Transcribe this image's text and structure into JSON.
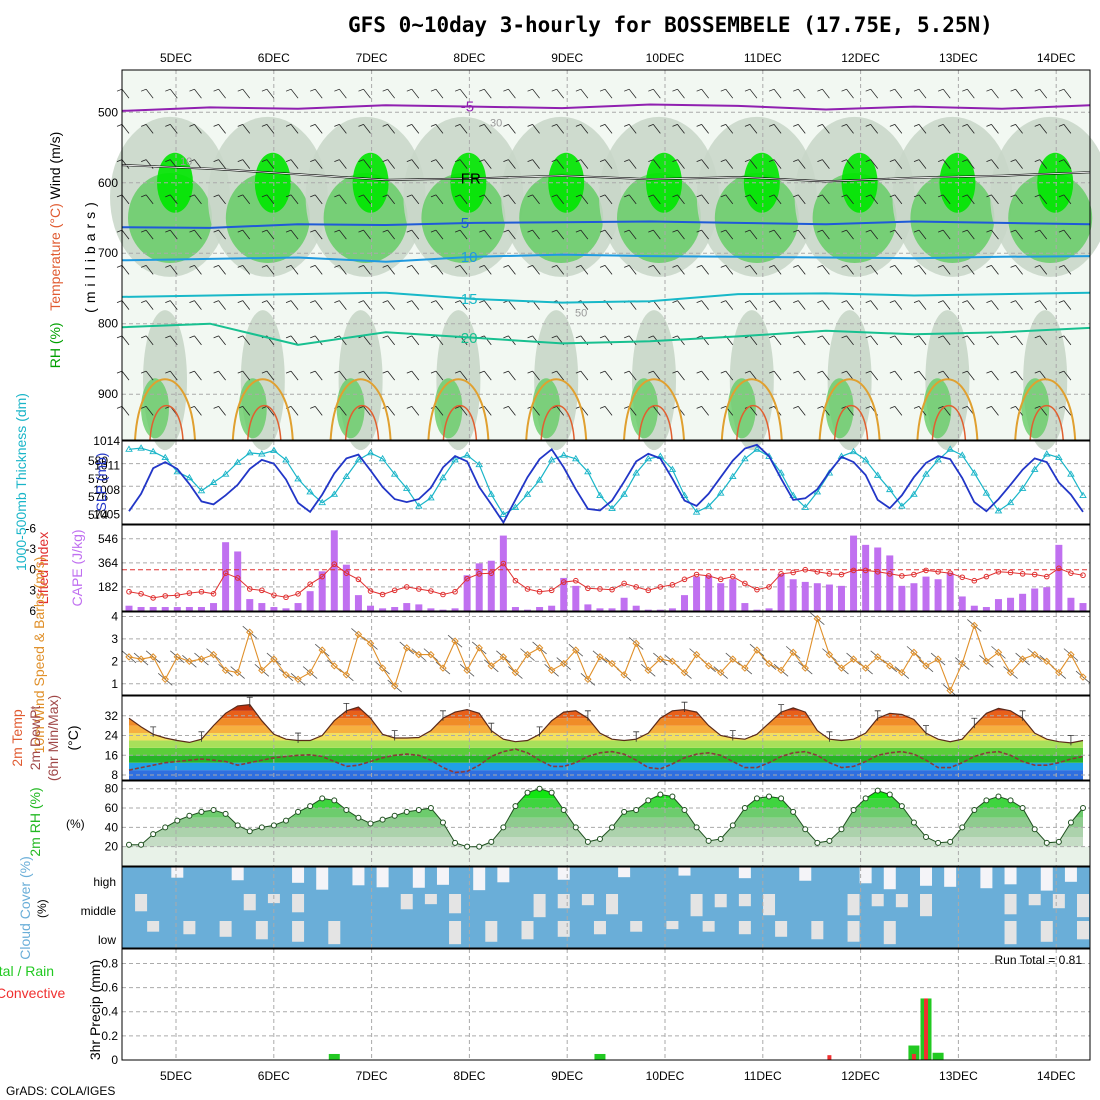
{
  "title": "GFS 0~10day 3-hourly for BOSSEMBELE (17.75E, 5.25N)",
  "credit": "GrADS: COLA/IGES",
  "run_total_text": "Run Total = 0.81",
  "colors": {
    "rh_dark": "#00e600",
    "rh_mid": "#66cc66",
    "rh_light": "#c8d6c8",
    "slp": "#2236c7",
    "thickness": "#19b5c8",
    "cape": "#c070f0",
    "lifted": "#e03030",
    "wind10": "#e0902a",
    "cloud": "#6aaed8",
    "precip_total": "#22c922",
    "precip_conv": "#f03030"
  },
  "chart_data": [
    {
      "type": "heatmap",
      "name": "upper-air",
      "ylabel_parts": [
        "RH (%)",
        "Temperature (°C)",
        "Wind (m/s)"
      ],
      "ylabel_axis": "(millibars)",
      "yticks": [
        500,
        600,
        700,
        800,
        900
      ],
      "ylim": [
        440,
        965
      ],
      "x_day_labels": [
        "5DEC",
        "6DEC",
        "7DEC",
        "8DEC",
        "9DEC",
        "10DEC",
        "11DEC",
        "12DEC",
        "13DEC",
        "14DEC"
      ],
      "temperature_isotherms": [
        {
          "value": -5,
          "label": "-5",
          "pressure": [
            498,
            493,
            495,
            490,
            492,
            494,
            489,
            491,
            496,
            492,
            495,
            490
          ]
        },
        {
          "value": 0,
          "label": "FR",
          "pressure": [
            575,
            580,
            588,
            596,
            594,
            590,
            595,
            592,
            598,
            593,
            590,
            585
          ]
        },
        {
          "value": 5,
          "label": "5",
          "pressure": [
            663,
            664,
            659,
            660,
            657,
            656,
            655,
            657,
            659,
            655,
            657,
            659
          ]
        },
        {
          "value": 10,
          "label": "10",
          "pressure": [
            710,
            708,
            706,
            712,
            705,
            702,
            704,
            705,
            706,
            707,
            705,
            704
          ]
        },
        {
          "value": 15,
          "label": "15",
          "pressure": [
            762,
            760,
            758,
            756,
            765,
            770,
            768,
            758,
            757,
            760,
            758,
            756
          ]
        },
        {
          "value": 20,
          "label": "20",
          "pressure": [
            805,
            800,
            830,
            812,
            820,
            828,
            825,
            818,
            810,
            815,
            812,
            806
          ]
        }
      ],
      "rh_labels": [
        "10",
        "30",
        "50"
      ]
    },
    {
      "type": "line",
      "name": "thickness-slp",
      "ylabel": "1000-500mb Thickness (dm)",
      "ylabel2": "SLP (mb)",
      "left_ticks": [
        "580",
        "578",
        "576",
        "574"
      ],
      "right_ticks": [
        "1014",
        "1011",
        "1008",
        "1005"
      ],
      "series": [
        {
          "name": "SLP (mb)",
          "values": [
            1004.7,
            1007.0,
            1010.4,
            1011.2,
            1010.3,
            1008.3,
            1006.0,
            1005.6,
            1006.8,
            1008.2,
            1010.3,
            1011.5,
            1011.0,
            1008.9,
            1005.8,
            1004.6,
            1006.9,
            1009.7,
            1011.7,
            1012.2,
            1010.1,
            1007.9,
            1006.3,
            1005.9,
            1006.3,
            1007.8,
            1010.5,
            1012.0,
            1011.3,
            1007.9,
            1005.6,
            1003.2,
            1006.2,
            1009.2,
            1011.6,
            1012.9,
            1010.5,
            1007.6,
            1005.0,
            1004.8,
            1006.1,
            1008.6,
            1011.3,
            1012.3,
            1011.7,
            1009.0,
            1006.1,
            1005.4,
            1007.0,
            1009.2,
            1011.4,
            1013.0,
            1013.5,
            1012.0,
            1009.0,
            1006.2,
            1006.4,
            1007.6,
            1009.9,
            1011.9,
            1011.2,
            1009.5,
            1006.2,
            1005.1,
            1006.8,
            1009.2,
            1011.1,
            1012.0,
            1011.6,
            1009.1,
            1005.9,
            1004.7,
            1006.3,
            1008.2,
            1010.2,
            1011.7,
            1011.2,
            1008.5,
            1006.9,
            1004.6
          ]
        },
        {
          "name": "1000-500mb Thickness (dm)",
          "values": [
            580.3,
            580.4,
            580.1,
            579.6,
            578.4,
            577.9,
            576.8,
            577.5,
            578.2,
            579.2,
            580.0,
            579.9,
            580.2,
            579.4,
            577.8,
            576.7,
            575.8,
            576.5,
            578.0,
            579.4,
            580.0,
            579.5,
            578.2,
            577.0,
            575.5,
            576.2,
            577.9,
            579.4,
            579.8,
            579.0,
            576.5,
            574.8,
            575.4,
            576.5,
            577.7,
            579.4,
            579.8,
            579.5,
            578.4,
            576.4,
            575.3,
            576.5,
            578.3,
            579.5,
            579.7,
            578.6,
            576.4,
            575.0,
            575.5,
            576.6,
            578.0,
            579.5,
            580.3,
            579.7,
            578.3,
            576.4,
            575.4,
            576.7,
            578.3,
            579.7,
            580.1,
            579.4,
            578.1,
            576.9,
            575.5,
            576.5,
            578.2,
            579.4,
            580.3,
            579.8,
            578.3,
            576.6,
            575.1,
            575.8,
            577.0,
            578.6,
            579.9,
            579.6,
            578.2,
            576.4
          ]
        }
      ]
    },
    {
      "type": "bar",
      "name": "cape-lifted-index",
      "ylabel": "Lifted Index",
      "ylabel2": "CAPE (J/kg)",
      "left_ticks": [
        "-6",
        "-3",
        "0",
        "3",
        "6"
      ],
      "right_ticks": [
        "546",
        "364",
        "182"
      ],
      "series": [
        {
          "name": "CAPE (J/kg)",
          "values": [
            40,
            30,
            30,
            30,
            30,
            30,
            30,
            60,
            520,
            450,
            90,
            60,
            30,
            20,
            60,
            150,
            300,
            610,
            350,
            120,
            40,
            20,
            30,
            60,
            50,
            20,
            10,
            20,
            270,
            360,
            380,
            570,
            30,
            10,
            30,
            40,
            250,
            190,
            50,
            20,
            20,
            100,
            40,
            10,
            10,
            20,
            120,
            260,
            270,
            210,
            240,
            60,
            10,
            20,
            280,
            240,
            220,
            210,
            200,
            190,
            570,
            500,
            480,
            420,
            190,
            210,
            260,
            240,
            290,
            110,
            40,
            30,
            90,
            100,
            130,
            170,
            180,
            500,
            100,
            60
          ]
        },
        {
          "name": "Lifted Index",
          "values": [
            3.2,
            3.5,
            4.1,
            3.8,
            3.7,
            3.4,
            3.2,
            3.5,
            0.5,
            1.2,
            2.8,
            3.0,
            3.7,
            4.0,
            3.5,
            2.1,
            1.0,
            -0.8,
            0.5,
            1.4,
            3.1,
            3.6,
            3.0,
            2.5,
            2.8,
            3.1,
            3.6,
            3.2,
            1.3,
            0.6,
            0.5,
            -0.9,
            1.6,
            2.8,
            3.2,
            3.0,
            1.8,
            1.6,
            2.7,
            2.8,
            2.9,
            2.0,
            2.5,
            3.0,
            2.5,
            2.2,
            1.4,
            0.7,
            0.9,
            1.4,
            1.0,
            2.0,
            2.9,
            2.5,
            0.6,
            0.4,
            0.0,
            0.3,
            0.6,
            0.7,
            0.1,
            0.1,
            0.3,
            0.6,
            0.9,
            0.7,
            0.1,
            0.3,
            0.5,
            1.1,
            1.6,
            1.0,
            0.3,
            0.4,
            0.6,
            0.7,
            1.0,
            -0.2,
            0.5,
            0.8
          ]
        }
      ]
    },
    {
      "type": "line",
      "name": "wind-10m",
      "ylabel": "10m Wind Speed & Barbs (m/s)",
      "yticks": [
        "4",
        "3",
        "2",
        "1"
      ],
      "ylim": [
        0.5,
        4.2
      ],
      "series": [
        {
          "name": "10m Wind Speed",
          "values": [
            2.2,
            2.1,
            2.2,
            1.2,
            2.2,
            2.0,
            2.1,
            2.3,
            1.6,
            1.5,
            3.3,
            1.6,
            2.1,
            1.4,
            1.2,
            1.5,
            2.5,
            1.8,
            1.4,
            3.2,
            2.8,
            1.7,
            0.9,
            2.6,
            2.3,
            2.3,
            1.7,
            2.9,
            1.6,
            2.6,
            1.8,
            2.2,
            1.5,
            2.3,
            2.6,
            1.6,
            1.9,
            2.5,
            1.2,
            2.2,
            1.9,
            1.4,
            2.8,
            1.6,
            2.1,
            2.0,
            1.5,
            2.3,
            1.8,
            1.5,
            2.1,
            1.7,
            2.5,
            1.9,
            1.6,
            2.4,
            1.7,
            3.9,
            2.3,
            1.7,
            2.1,
            1.7,
            2.2,
            1.8,
            1.5,
            2.4,
            1.8,
            2.1,
            0.7,
            1.9,
            3.6,
            2.0,
            2.4,
            1.5,
            2.1,
            2.3,
            2.0,
            1.5,
            2.3,
            1.3
          ]
        }
      ]
    },
    {
      "type": "area",
      "name": "temperature-2m",
      "ylabel": "2m Temp 2m DewPt (6hr Min/Max) (°C)",
      "ylabel_lines": [
        "2m Temp",
        "2m DewPt",
        "(6hr Min/Max)",
        "(°C)"
      ],
      "yticks": [
        "32",
        "24",
        "16",
        "8"
      ],
      "ylim": [
        6,
        40
      ],
      "series": [
        {
          "name": "2m Temp",
          "values": [
            31,
            27.5,
            24.5,
            23,
            22,
            21.2,
            22.5,
            28,
            33,
            36,
            36.5,
            30,
            24.5,
            22.5,
            22,
            22,
            24,
            30,
            34,
            35.5,
            31,
            24.5,
            23,
            23,
            23.2,
            26,
            31,
            33.5,
            34.5,
            33,
            26,
            22.5,
            21.5,
            22,
            24.5,
            30,
            33.5,
            34,
            31,
            25,
            22.5,
            22,
            22.5,
            25,
            31,
            34,
            34.5,
            33.5,
            28,
            24,
            23,
            22.5,
            24.5,
            29,
            33.5,
            35.2,
            33.5,
            26,
            22.5,
            22,
            22.5,
            25,
            31,
            33,
            32.5,
            30.5,
            25,
            22.5,
            21.5,
            22.5,
            28,
            33,
            35,
            34,
            31,
            25,
            22.5,
            21.5,
            21,
            22
          ]
        },
        {
          "name": "2m DewPt",
          "values": [
            10,
            11,
            12,
            13,
            13.5,
            14,
            14.5,
            14,
            13.5,
            12,
            13,
            14,
            15,
            15.5,
            16,
            16.2,
            15.5,
            13.5,
            11.5,
            12,
            13.5,
            15,
            16,
            16.5,
            16,
            14,
            11,
            9,
            9.5,
            12,
            15.5,
            17.5,
            18.5,
            17,
            14,
            11.5,
            11.5,
            13,
            15.5,
            17,
            17.5,
            16.5,
            14,
            11,
            10.5,
            12.5,
            15,
            16.5,
            17,
            16,
            13.5,
            11,
            11,
            13,
            15.5,
            17,
            17.5,
            16,
            13,
            11,
            11.5,
            13.5,
            16,
            17,
            17.5,
            16.5,
            14,
            11,
            11,
            13,
            15.5,
            17,
            17.5,
            16,
            13.5,
            12,
            12,
            13,
            14.5,
            15.5
          ]
        }
      ]
    },
    {
      "type": "area",
      "name": "rh-2m",
      "ylabel": "2m RH (%)",
      "yticks": [
        "80",
        "60",
        "40",
        "20"
      ],
      "ylim": [
        0,
        88
      ],
      "series": [
        {
          "name": "2m RH",
          "values": [
            22,
            22,
            33,
            40,
            47,
            52,
            56,
            58,
            54,
            42,
            36,
            40,
            42,
            47,
            56,
            62,
            70,
            68,
            58,
            50,
            44,
            48,
            52,
            56,
            58,
            60,
            45,
            24,
            20,
            20,
            25,
            40,
            62,
            76,
            80,
            76,
            58,
            40,
            25,
            28,
            40,
            56,
            58,
            68,
            74,
            72,
            58,
            40,
            26,
            28,
            42,
            60,
            70,
            72,
            70,
            56,
            38,
            24,
            26,
            38,
            58,
            70,
            78,
            74,
            62,
            45,
            30,
            24,
            25,
            40,
            58,
            68,
            72,
            68,
            60,
            38,
            24,
            25,
            45,
            60
          ]
        }
      ]
    },
    {
      "type": "heatmap",
      "name": "cloud-cover",
      "ylabel": "Cloud Cover (%)",
      "row_labels": [
        "high",
        "middle",
        "low"
      ]
    },
    {
      "type": "bar",
      "name": "precip-3hr",
      "ylabel": "3hr Precip (mm)",
      "ylabel_left_parts": [
        "Total / Rain",
        "Convective"
      ],
      "yticks": [
        "0.8",
        "0.6",
        "0.4",
        "0.2",
        "0"
      ],
      "ylim": [
        0,
        0.92
      ],
      "series": [
        {
          "name": "Total / Rain",
          "values": {
            "17": 0.05,
            "39": 0.05,
            "65": 0.12,
            "66": 0.51,
            "67": 0.06
          }
        },
        {
          "name": "Convective",
          "values": {
            "58": 0.04,
            "65": 0.05,
            "66": 0.51
          }
        }
      ]
    }
  ]
}
